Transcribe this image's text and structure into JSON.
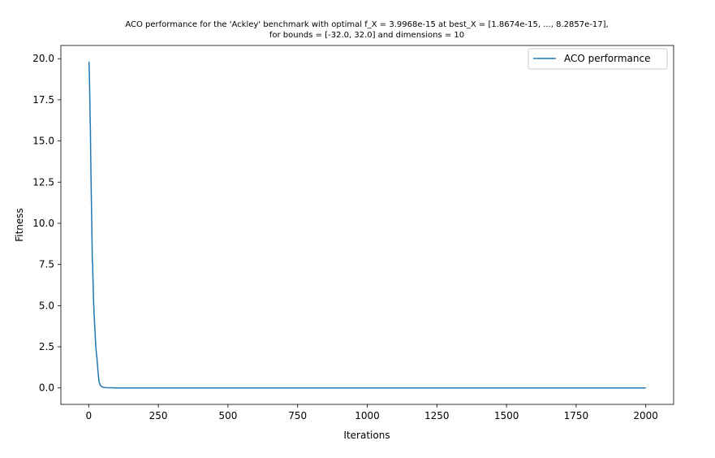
{
  "chart_data": {
    "type": "line",
    "title_lines": [
      "ACO performance for the 'Ackley' benchmark with optimal f_X = 3.9968e-15 at best_X = [1.8674e-15, ..., 8.2857e-17],",
      "for bounds = [-32.0, 32.0] and dimensions = 10"
    ],
    "xlabel": "Iterations",
    "ylabel": "Fitness",
    "xlim": [
      -100,
      2100
    ],
    "ylim": [
      -1.0,
      20.8
    ],
    "x_ticks": [
      0,
      250,
      500,
      750,
      1000,
      1250,
      1500,
      1750,
      2000
    ],
    "y_ticks": [
      0.0,
      2.5,
      5.0,
      7.5,
      10.0,
      12.5,
      15.0,
      17.5,
      20.0
    ],
    "grid": false,
    "legend_position": "upper right",
    "series": [
      {
        "name": "ACO performance",
        "color": "#1f77b4",
        "x": [
          0,
          1,
          2,
          3,
          4,
          5,
          6,
          7,
          8,
          9,
          10,
          11,
          12,
          13,
          14,
          15,
          17,
          19,
          21,
          23,
          25,
          27,
          29,
          31,
          33,
          35,
          37,
          40,
          45,
          50,
          60,
          80,
          100,
          2000
        ],
        "y": [
          19.8,
          19.8,
          19.2,
          18.5,
          17.5,
          16.5,
          15.7,
          14.3,
          13.1,
          12.0,
          11.0,
          10.0,
          8.8,
          7.6,
          7.6,
          6.8,
          5.5,
          4.6,
          3.9,
          3.3,
          2.6,
          2.2,
          1.9,
          1.5,
          1.1,
          0.7,
          0.4,
          0.2,
          0.1,
          0.05,
          0.02,
          0.01,
          0.0,
          0.0
        ]
      }
    ]
  }
}
